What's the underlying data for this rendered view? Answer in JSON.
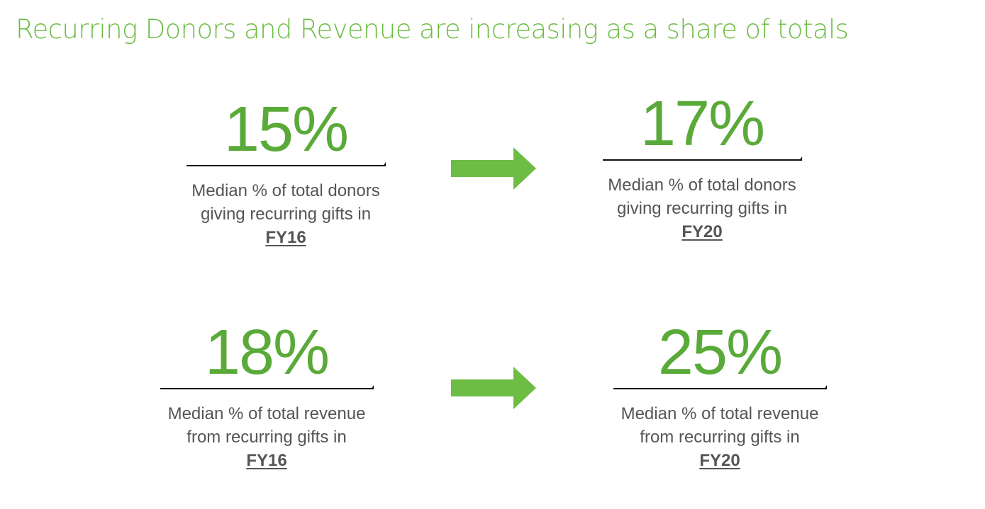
{
  "title": "Recurring Donors and Revenue are increasing as a share of totals",
  "colors": {
    "title": "#6dbd45",
    "stat": "#5aaa3a",
    "arrow": "#6dbd45",
    "text": "#555555"
  },
  "rows": [
    {
      "before": {
        "value": "15%",
        "line1": "Median % of total donors",
        "line2": "giving recurring gifts in",
        "year": "FY16"
      },
      "after": {
        "value": "17%",
        "line1": "Median % of total donors",
        "line2": "giving recurring gifts in",
        "year": "FY20"
      },
      "arrow_icon": "right-arrow-icon"
    },
    {
      "before": {
        "value": "18%",
        "line1": "Median % of total revenue",
        "line2": "from recurring gifts in",
        "year": "FY16"
      },
      "after": {
        "value": "25%",
        "line1": "Median % of total revenue",
        "line2": "from recurring gifts in",
        "year": "FY20"
      },
      "arrow_icon": "right-arrow-icon"
    }
  ]
}
